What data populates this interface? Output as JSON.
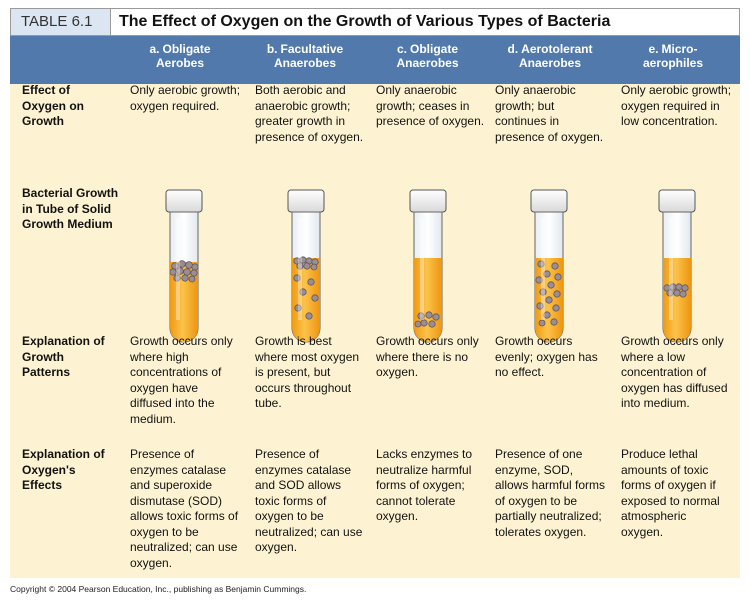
{
  "table_tag": "TABLE 6.1",
  "title": "The Effect of Oxygen on the Growth of Various Types of Bacteria",
  "columns": [
    {
      "letter": "a.",
      "name": "Obligate Aerobes",
      "line1": "Obligate",
      "line2": "Aerobes"
    },
    {
      "letter": "b.",
      "name": "Facultative Anaerobes",
      "line1": "Facultative",
      "line2": "Anaerobes"
    },
    {
      "letter": "c.",
      "name": "Obligate Anaerobes",
      "line1": "Obligate",
      "line2": "Anaerobes"
    },
    {
      "letter": "d.",
      "name": "Aerotolerant Anaerobes",
      "line1": "Aerotolerant",
      "line2": "Anaerobes"
    },
    {
      "letter": "e.",
      "name": "Microaerophiles",
      "line1": "Micro-",
      "line2": "aerophiles"
    }
  ],
  "rows": {
    "effect": {
      "label": "Effect of Oxygen on Growth",
      "cells": [
        "Only aerobic growth; oxygen required.",
        "Both aerobic and anaerobic growth; greater growth in presence of oxygen.",
        "Only anaerobic growth; ceases in presence of oxygen.",
        "Only anaerobic growth; but continues in presence of oxygen.",
        "Only aerobic growth; oxygen required in low concentration."
      ]
    },
    "tube": {
      "label": "Bacterial Growth in Tube of Solid Growth Medium"
    },
    "patterns": {
      "label": "Explanation of Growth Patterns",
      "cells": [
        "Growth occurs only where high concentrations of oxygen have diffused into the medium.",
        "Growth is best where most oxygen is present, but occurs throughout tube.",
        "Growth occurs only where there is no oxygen.",
        "Growth occurs evenly; oxygen has no effect.",
        "Growth occurs only where a low concentration of oxygen has diffused into medium."
      ]
    },
    "oxygen_effects": {
      "label": "Explanation of Oxygen's Effects",
      "cells": [
        "Presence of enzymes catalase and superoxide dismutase (SOD) allows toxic forms of oxygen to be neutralized; can use oxygen.",
        "Presence of enzymes catalase and SOD allows toxic forms of oxygen to be neutralized; can use oxygen.",
        "Lacks enzymes to neutralize harmful forms of oxygen; cannot tolerate oxygen.",
        "Presence of one enzyme, SOD, allows harmful forms of oxygen to be partially neutralized; tolerates oxygen.",
        "Produce lethal amounts of toxic forms of oxygen if exposed to normal atmospheric oxygen."
      ]
    }
  },
  "tube_growth_patterns": [
    "top",
    "gradient",
    "bottom",
    "even",
    "near-top band"
  ],
  "colors": {
    "header_blue": "#5179ab",
    "background_cream": "#fdf3d2",
    "tag_blue": "#dbe6f2",
    "medium_orange": "#f3a51c",
    "colony_grey": "#9b8e93"
  },
  "copyright": "Copyright © 2004 Pearson Education, Inc., publishing as Benjamin Cummings."
}
